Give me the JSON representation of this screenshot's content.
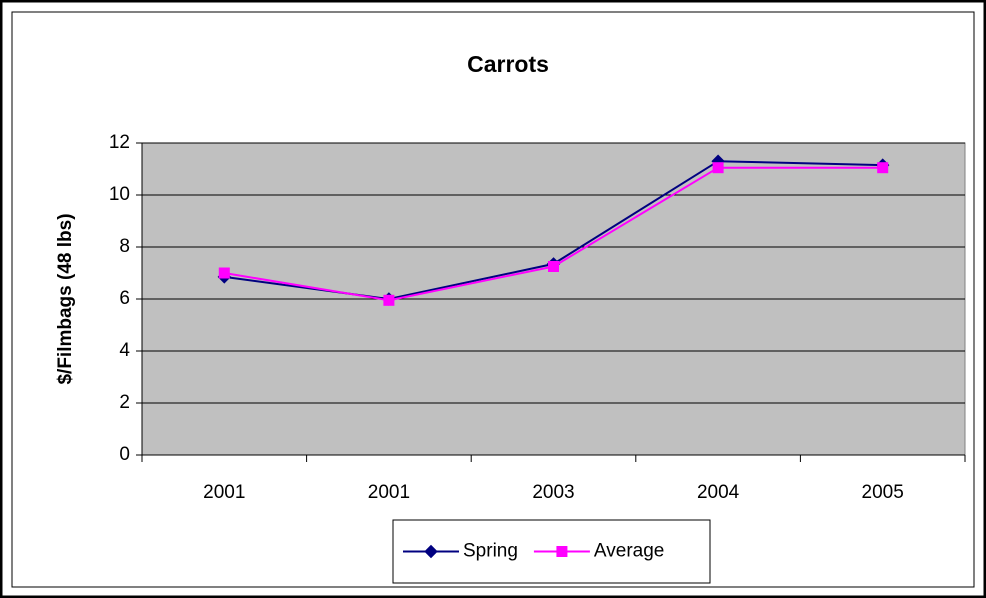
{
  "chart_data": {
    "type": "line",
    "title": "Carrots",
    "y_label": "$/Filmbags (48 lbs)",
    "categories": [
      "2001",
      "2001",
      "2003",
      "2004",
      "2005"
    ],
    "series": [
      {
        "name": "Spring",
        "color": "#000080",
        "marker": "diamond",
        "values": [
          6.85,
          6.0,
          7.35,
          11.3,
          11.15
        ]
      },
      {
        "name": "Average",
        "color": "#ff00ff",
        "marker": "square",
        "values": [
          7.0,
          5.95,
          7.25,
          11.05,
          11.05
        ]
      }
    ],
    "ylim": [
      0,
      12
    ],
    "yticks": [
      0,
      2,
      4,
      6,
      8,
      10,
      12
    ],
    "grid": true,
    "legend": "bottom",
    "plot_background": "#c0c0c0"
  }
}
